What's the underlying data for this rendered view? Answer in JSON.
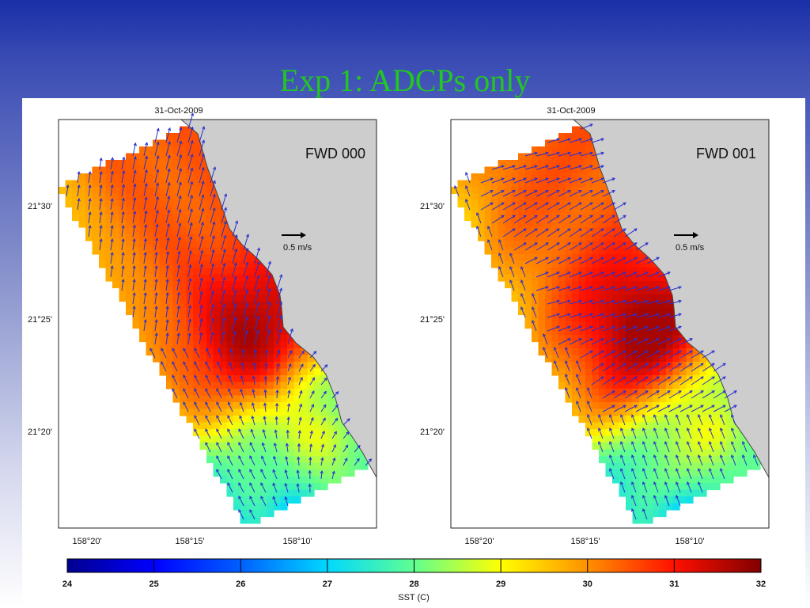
{
  "slide": {
    "title": "Exp 1: ADCPs only"
  },
  "chart_data": [
    {
      "type": "heatmap",
      "title": "31-Oct-2009",
      "panel_label": "FWD 000",
      "x_ticks": [
        "158°20'",
        "158°15'",
        "158°10'"
      ],
      "y_ticks": [
        "21°30'",
        "21°25'",
        "21°20'"
      ],
      "scale_arrow_label": "0.5 m/s",
      "variable": "SST (C)",
      "value_range": [
        26.5,
        31.5
      ]
    },
    {
      "type": "heatmap",
      "title": "31-Oct-2009",
      "panel_label": "FWD 001",
      "x_ticks": [
        "158°20'",
        "158°15'",
        "158°10'"
      ],
      "y_ticks": [
        "21°30'",
        "21°25'",
        "21°20'"
      ],
      "scale_arrow_label": "0.5 m/s",
      "variable": "SST (C)",
      "value_range": [
        26.5,
        31.5
      ]
    }
  ],
  "colorbar": {
    "label": "SST (C)",
    "ticks": [
      "24",
      "25",
      "26",
      "27",
      "28",
      "29",
      "30",
      "31",
      "32"
    ],
    "range": [
      24,
      32
    ]
  },
  "colors": {
    "title": "#22c722",
    "land": "#cdcdcd",
    "vector": "#2830d0"
  }
}
